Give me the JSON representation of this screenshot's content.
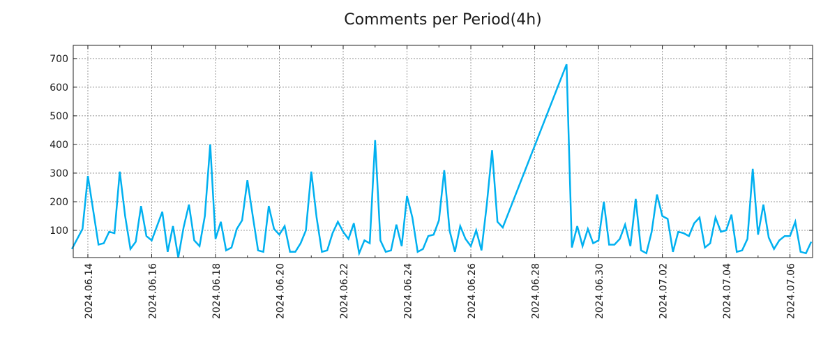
{
  "chart_data": {
    "type": "line",
    "title": "Comments per Period(4h)",
    "xlabel": "",
    "ylabel": "",
    "x_units": "hours from 2024.06.14 00:00",
    "xlim": [
      -11,
      545
    ],
    "ylim": [
      5,
      746
    ],
    "grid": true,
    "line_color": "#00b0f0",
    "yticks": [
      100,
      200,
      300,
      400,
      500,
      600,
      700
    ],
    "xticks": [
      {
        "x": 0,
        "label": "2024.06.14"
      },
      {
        "x": 48,
        "label": "2024.06.16"
      },
      {
        "x": 96,
        "label": "2024.06.18"
      },
      {
        "x": 144,
        "label": "2024.06.20"
      },
      {
        "x": 192,
        "label": "2024.06.22"
      },
      {
        "x": 240,
        "label": "2024.06.24"
      },
      {
        "x": 288,
        "label": "2024.06.26"
      },
      {
        "x": 336,
        "label": "2024.06.28"
      },
      {
        "x": 384,
        "label": "2024.06.30"
      },
      {
        "x": 432,
        "label": "2024.07.02"
      },
      {
        "x": 480,
        "label": "2024.07.04"
      },
      {
        "x": 528,
        "label": "2024.07.06"
      }
    ],
    "series": [
      {
        "name": "Comments",
        "x": [
          -12,
          -4,
          0,
          8,
          12,
          16,
          20,
          24,
          28,
          32,
          36,
          40,
          44,
          48,
          52,
          56,
          60,
          64,
          68,
          72,
          76,
          80,
          84,
          88,
          92,
          96,
          100,
          104,
          108,
          112,
          116,
          120,
          124,
          128,
          132,
          136,
          140,
          144,
          148,
          152,
          156,
          160,
          164,
          168,
          172,
          176,
          180,
          184,
          188,
          192,
          196,
          200,
          204,
          208,
          212,
          216,
          220,
          224,
          228,
          232,
          236,
          240,
          244,
          248,
          252,
          256,
          260,
          264,
          268,
          272,
          276,
          280,
          284,
          288,
          292,
          296,
          300,
          304,
          308,
          312,
          360,
          364,
          368,
          372,
          376,
          380,
          384,
          388,
          392,
          396,
          400,
          404,
          408,
          412,
          416,
          420,
          424,
          428,
          432,
          436,
          440,
          444,
          448,
          452,
          456,
          460,
          464,
          468,
          472,
          476,
          480,
          484,
          488,
          492,
          496,
          500,
          504,
          508,
          512,
          516,
          520,
          524,
          528,
          532,
          536,
          540,
          544
        ],
        "y": [
          35,
          105,
          290,
          50,
          55,
          95,
          90,
          305,
          150,
          35,
          60,
          185,
          80,
          65,
          115,
          165,
          25,
          115,
          5,
          110,
          190,
          65,
          45,
          150,
          400,
          70,
          130,
          30,
          40,
          105,
          135,
          275,
          150,
          30,
          25,
          185,
          105,
          85,
          115,
          25,
          25,
          55,
          100,
          305,
          145,
          25,
          30,
          90,
          130,
          95,
          70,
          125,
          20,
          65,
          55,
          415,
          65,
          25,
          30,
          120,
          45,
          220,
          145,
          25,
          35,
          80,
          85,
          135,
          310,
          100,
          25,
          115,
          70,
          45,
          100,
          30,
          190,
          380,
          130,
          110,
          680,
          40,
          115,
          45,
          105,
          55,
          65,
          200,
          50,
          50,
          70,
          120,
          45,
          210,
          30,
          20,
          95,
          225,
          150,
          140,
          25,
          95,
          90,
          80,
          125,
          145,
          40,
          55,
          145,
          95,
          100,
          155,
          25,
          30,
          70,
          315,
          85,
          190,
          75,
          35,
          65,
          80,
          80,
          130,
          25,
          20,
          60
        ]
      }
    ]
  }
}
